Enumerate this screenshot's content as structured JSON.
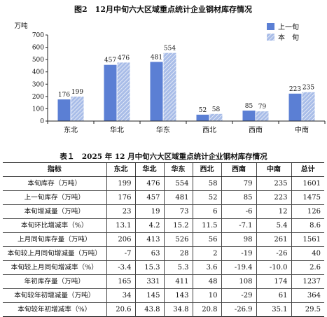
{
  "chart_data": {
    "type": "bar",
    "title": "图2　12月中旬六大区域重点统计企业钢材库存情况",
    "ylabel": "万吨",
    "ylim": [
      0,
      700
    ],
    "yticks": [
      0,
      100,
      200,
      300,
      400,
      500,
      600,
      700
    ],
    "categories": [
      "东北",
      "华北",
      "华东",
      "西北",
      "西南",
      "中南"
    ],
    "series": [
      {
        "name": "上一旬",
        "color": "#5b7fd4",
        "pattern": "solid",
        "values": [
          176,
          457,
          481,
          52,
          85,
          223
        ]
      },
      {
        "name": "本　旬",
        "color": "#a9bde8",
        "pattern": "hatched",
        "values": [
          199,
          476,
          554,
          58,
          79,
          235
        ]
      }
    ],
    "legend_position": "top-right",
    "grid": false
  },
  "table": {
    "title": "表１　2025 年 12 月中旬六大区域重点统计企业钢材库存情况",
    "headers": [
      "指标",
      "东北",
      "华北",
      "华东",
      "西北",
      "西南",
      "中南",
      "总计"
    ],
    "rows": [
      [
        "本旬库存（万吨）",
        "199",
        "476",
        "554",
        "58",
        "79",
        "235",
        "1601"
      ],
      [
        "上一旬库存（万吨）",
        "176",
        "457",
        "481",
        "52",
        "85",
        "223",
        "1475"
      ],
      [
        "本旬增减量（万吨）",
        "23",
        "19",
        "73",
        "6",
        "-6",
        "12",
        "126"
      ],
      [
        "本旬环比增减率（%）",
        "13.1",
        "4.2",
        "15.2",
        "11.5",
        "-7.1",
        "5.4",
        "8.6"
      ],
      [
        "上月同旬库存量（万吨）",
        "206",
        "413",
        "526",
        "56",
        "98",
        "261",
        "1561"
      ],
      [
        "本旬较上月同旬增减量（万吨）",
        "-7",
        "63",
        "28",
        "2",
        "-19",
        "-26",
        "40"
      ],
      [
        "本旬较上月同旬增减率（%）",
        "-3.4",
        "15.3",
        "5.3",
        "3.6",
        "-19.4",
        "-10.0",
        "2.6"
      ],
      [
        "年初库存量（万吨）",
        "165",
        "331",
        "411",
        "48",
        "108",
        "174",
        "1237"
      ],
      [
        "本旬较年初增减量（万吨）",
        "34",
        "145",
        "143",
        "10",
        "-29",
        "61",
        "364"
      ],
      [
        "本旬较年初增减率（%）",
        "20.6",
        "43.8",
        "34.8",
        "20.8",
        "-26.9",
        "35.1",
        "29.5"
      ]
    ]
  }
}
